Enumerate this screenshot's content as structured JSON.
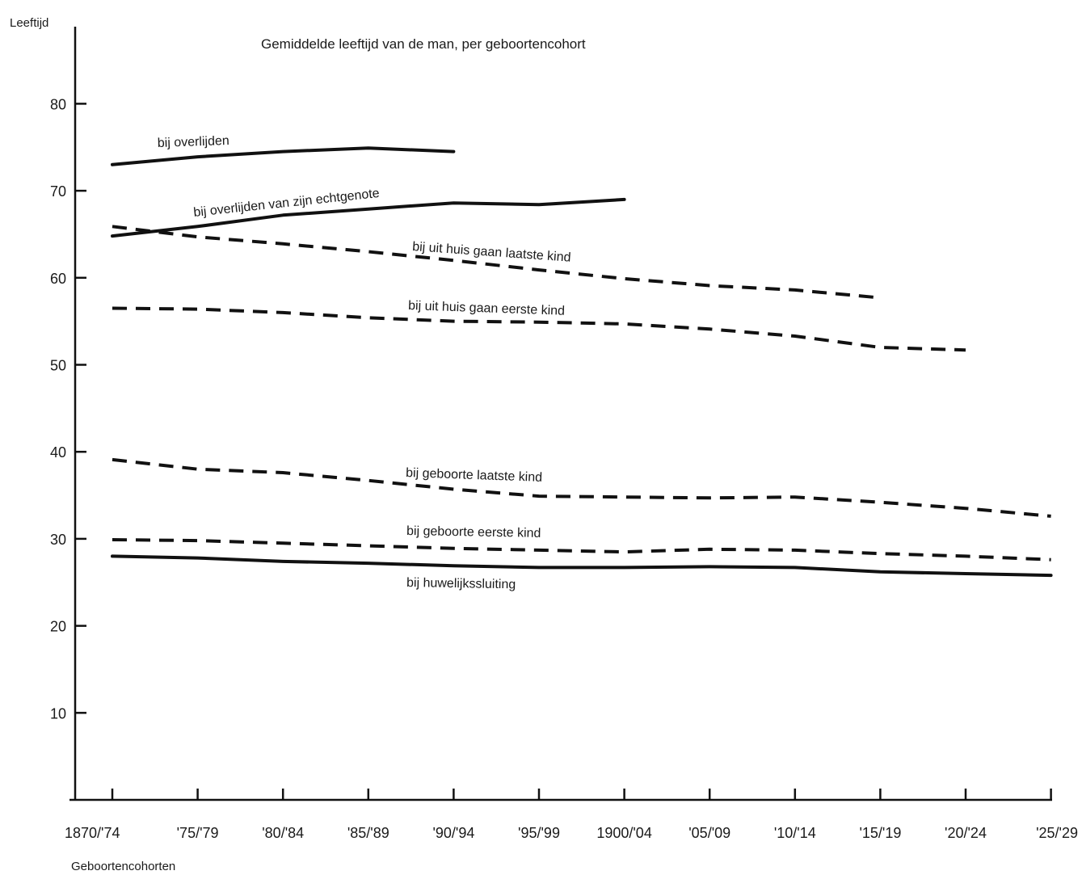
{
  "chart_data": {
    "type": "line",
    "title": "Gemiddelde leeftijd van de man, per geboortencohort",
    "xlabel": "Geboortencohorten",
    "ylabel": "Leeftijd",
    "categories": [
      "1870/'74",
      "'75/'79",
      "'80/'84",
      "'85/'89",
      "'90/'94",
      "'95/'99",
      "1900/'04",
      "'05/'09",
      "'10/'14",
      "'15/'19",
      "'20/'24",
      "'25/'29"
    ],
    "yticks": [
      10,
      20,
      30,
      40,
      50,
      60,
      70,
      80
    ],
    "ylim": [
      0,
      89
    ],
    "grid": false,
    "legend": "none",
    "series": [
      {
        "name": "bij overlijden",
        "style": "solid",
        "values": [
          73.0,
          73.9,
          74.5,
          74.9,
          74.5,
          null,
          null,
          null,
          null,
          null,
          null,
          null
        ]
      },
      {
        "name": "bij overlijden van zijn echtgenote",
        "style": "solid",
        "values": [
          64.8,
          65.9,
          67.2,
          67.9,
          68.6,
          68.4,
          69.0,
          null,
          null,
          null,
          null,
          null
        ]
      },
      {
        "name": "bij uit huis gaan laatste kind",
        "style": "dashed",
        "values": [
          65.9,
          64.7,
          63.9,
          63.0,
          62.0,
          60.9,
          59.9,
          59.1,
          58.6,
          57.7,
          null,
          null
        ]
      },
      {
        "name": "bij uit huis gaan eerste kind",
        "style": "dashed",
        "values": [
          56.5,
          56.4,
          56.0,
          55.4,
          55.0,
          54.9,
          54.7,
          54.1,
          53.3,
          52.0,
          51.7,
          null
        ]
      },
      {
        "name": "bij geboorte laatste kind",
        "style": "dashed",
        "values": [
          39.1,
          38.0,
          37.6,
          36.7,
          35.7,
          34.9,
          34.8,
          34.7,
          34.8,
          34.2,
          33.5,
          32.6
        ]
      },
      {
        "name": "bij geboorte eerste kind",
        "style": "dashed",
        "values": [
          29.9,
          29.8,
          29.5,
          29.2,
          28.9,
          28.7,
          28.5,
          28.8,
          28.7,
          28.3,
          28.0,
          27.6
        ]
      },
      {
        "name": "bij huwelijkssluiting",
        "style": "solid",
        "values": [
          28.0,
          27.8,
          27.4,
          27.2,
          26.9,
          26.7,
          26.7,
          26.8,
          26.7,
          26.2,
          26.0,
          25.8
        ]
      }
    ]
  }
}
